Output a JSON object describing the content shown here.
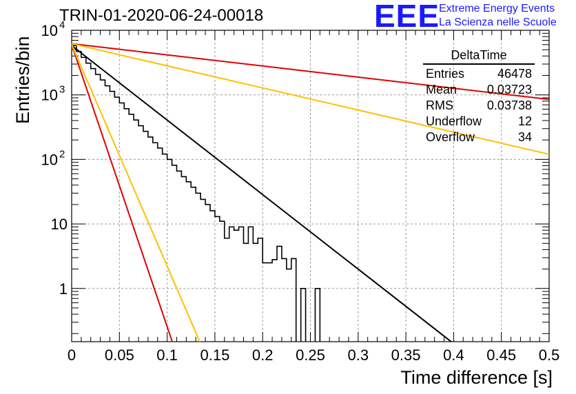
{
  "title": "TRIN-01-2020-06-24-00018",
  "logo": {
    "mark": "EEE",
    "line1": "Extreme Energy Events",
    "line2": "La Scienza nelle Scuole",
    "color": "#1a1aff"
  },
  "stats_box": {
    "title": "DeltaTime",
    "rows": [
      {
        "label": "Entries",
        "value": "46478"
      },
      {
        "label": "Mean",
        "value": "0.03723"
      },
      {
        "label": "RMS",
        "value": "0.03738"
      },
      {
        "label": "Underflow",
        "value": "12"
      },
      {
        "label": "Overflow",
        "value": "34"
      }
    ]
  },
  "chart_data": {
    "type": "line",
    "xlabel": "Time difference [s]",
    "ylabel": "Entries/bin",
    "xlim": [
      0,
      0.5
    ],
    "ylim": [
      0.15,
      10000
    ],
    "y_scale": "log",
    "grid": true,
    "x_ticks": [
      "0",
      "0.05",
      "0.1",
      "0.15",
      "0.2",
      "0.25",
      "0.3",
      "0.35",
      "0.4",
      "0.45",
      "0.5"
    ],
    "y_ticks": [
      {
        "value": 1,
        "label": "1"
      },
      {
        "value": 10,
        "label": "10"
      },
      {
        "value": 100,
        "label": "10",
        "exp": "2"
      },
      {
        "value": 1000,
        "label": "10",
        "exp": "3"
      },
      {
        "value": 10000,
        "label": "10",
        "exp": "4"
      }
    ],
    "histogram": {
      "bin_width": 0.005,
      "color": "#000000",
      "values": [
        5800,
        4700,
        3800,
        3100,
        2550,
        2070,
        1700,
        1380,
        1130,
        920,
        750,
        610,
        500,
        408,
        332,
        272,
        222,
        181,
        150,
        121,
        100,
        81,
        66,
        54,
        45,
        37,
        30,
        24,
        20,
        16,
        13,
        11,
        6,
        9,
        8,
        9,
        5,
        9,
        5,
        6,
        2.5,
        2.5,
        2.8,
        4.5,
        2.9,
        2,
        2.9,
        0,
        1,
        0.1,
        0.1,
        1,
        0.1,
        0.1,
        0.1,
        0,
        0,
        0,
        0,
        0,
        0,
        0,
        0,
        0,
        0,
        0,
        0,
        0,
        0,
        0,
        0,
        0,
        0,
        0,
        0,
        0,
        0,
        0,
        0,
        0,
        0,
        0,
        0,
        0,
        0,
        0,
        0,
        0,
        0,
        0,
        0,
        0,
        0,
        0,
        0,
        0,
        0,
        0,
        0,
        0
      ]
    },
    "series": [
      {
        "color": "#000000",
        "points": [
          [
            0,
            5800
          ],
          [
            0.4,
            0.14
          ]
        ]
      },
      {
        "color": "#e00000",
        "points": [
          [
            0,
            6200
          ],
          [
            0.5,
            850
          ]
        ]
      },
      {
        "color": "#ffc000",
        "points": [
          [
            0,
            6200
          ],
          [
            0.5,
            120
          ]
        ]
      },
      {
        "color": "#e00000",
        "points": [
          [
            0,
            6000
          ],
          [
            0.106,
            0.14
          ]
        ]
      },
      {
        "color": "#ffc000",
        "points": [
          [
            0,
            6000
          ],
          [
            0.135,
            0.14
          ]
        ]
      }
    ]
  }
}
